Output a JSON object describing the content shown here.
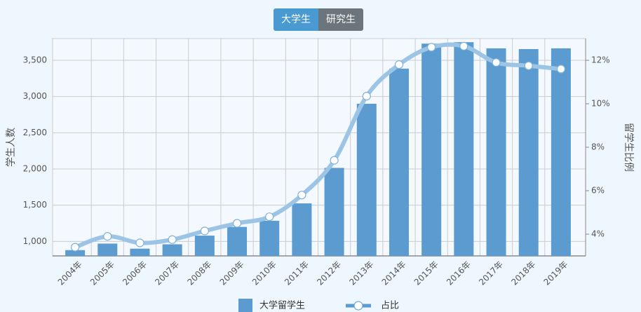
{
  "tabs": [
    "大学生",
    "研究生"
  ],
  "chart_data": {
    "type": "bar-line",
    "categories": [
      "2004年",
      "2005年",
      "2006年",
      "2007年",
      "2008年",
      "2009年",
      "2010年",
      "2011年",
      "2012年",
      "2013年",
      "2014年",
      "2015年",
      "2016年",
      "2017年",
      "2018年",
      "2019年"
    ],
    "series": [
      {
        "name": "大学留学生",
        "type": "bar",
        "color": "#5b9bd0",
        "values": [
          880,
          970,
          900,
          960,
          1080,
          1200,
          1285,
          1525,
          2015,
          2900,
          3385,
          3730,
          3750,
          3665,
          3655,
          3665
        ]
      },
      {
        "name": "占比",
        "type": "line",
        "axis": "y2",
        "color": "#9cc4e4",
        "values": [
          3.4,
          3.9,
          3.6,
          3.75,
          4.15,
          4.5,
          4.8,
          5.8,
          7.4,
          10.35,
          11.8,
          12.6,
          12.65,
          11.9,
          11.75,
          11.6
        ]
      }
    ],
    "ylabel": "学生人数",
    "y2label": "留学生比例",
    "ylim": [
      800,
      3800
    ],
    "yticks": [
      {
        "value": 1000,
        "label": "1,000"
      },
      {
        "value": 1500,
        "label": "1,500"
      },
      {
        "value": 2000,
        "label": "2,000"
      },
      {
        "value": 2500,
        "label": "2,500"
      },
      {
        "value": 3000,
        "label": "3,000"
      },
      {
        "value": 3500,
        "label": "3,500"
      }
    ],
    "y2lim": [
      3,
      13
    ],
    "y2ticks": [
      {
        "value": 4,
        "label": "4%"
      },
      {
        "value": 6,
        "label": "6%"
      },
      {
        "value": 8,
        "label": "8%"
      },
      {
        "value": 10,
        "label": "10%"
      },
      {
        "value": 12,
        "label": "12%"
      }
    ],
    "grid": true,
    "legend": "bottom"
  }
}
